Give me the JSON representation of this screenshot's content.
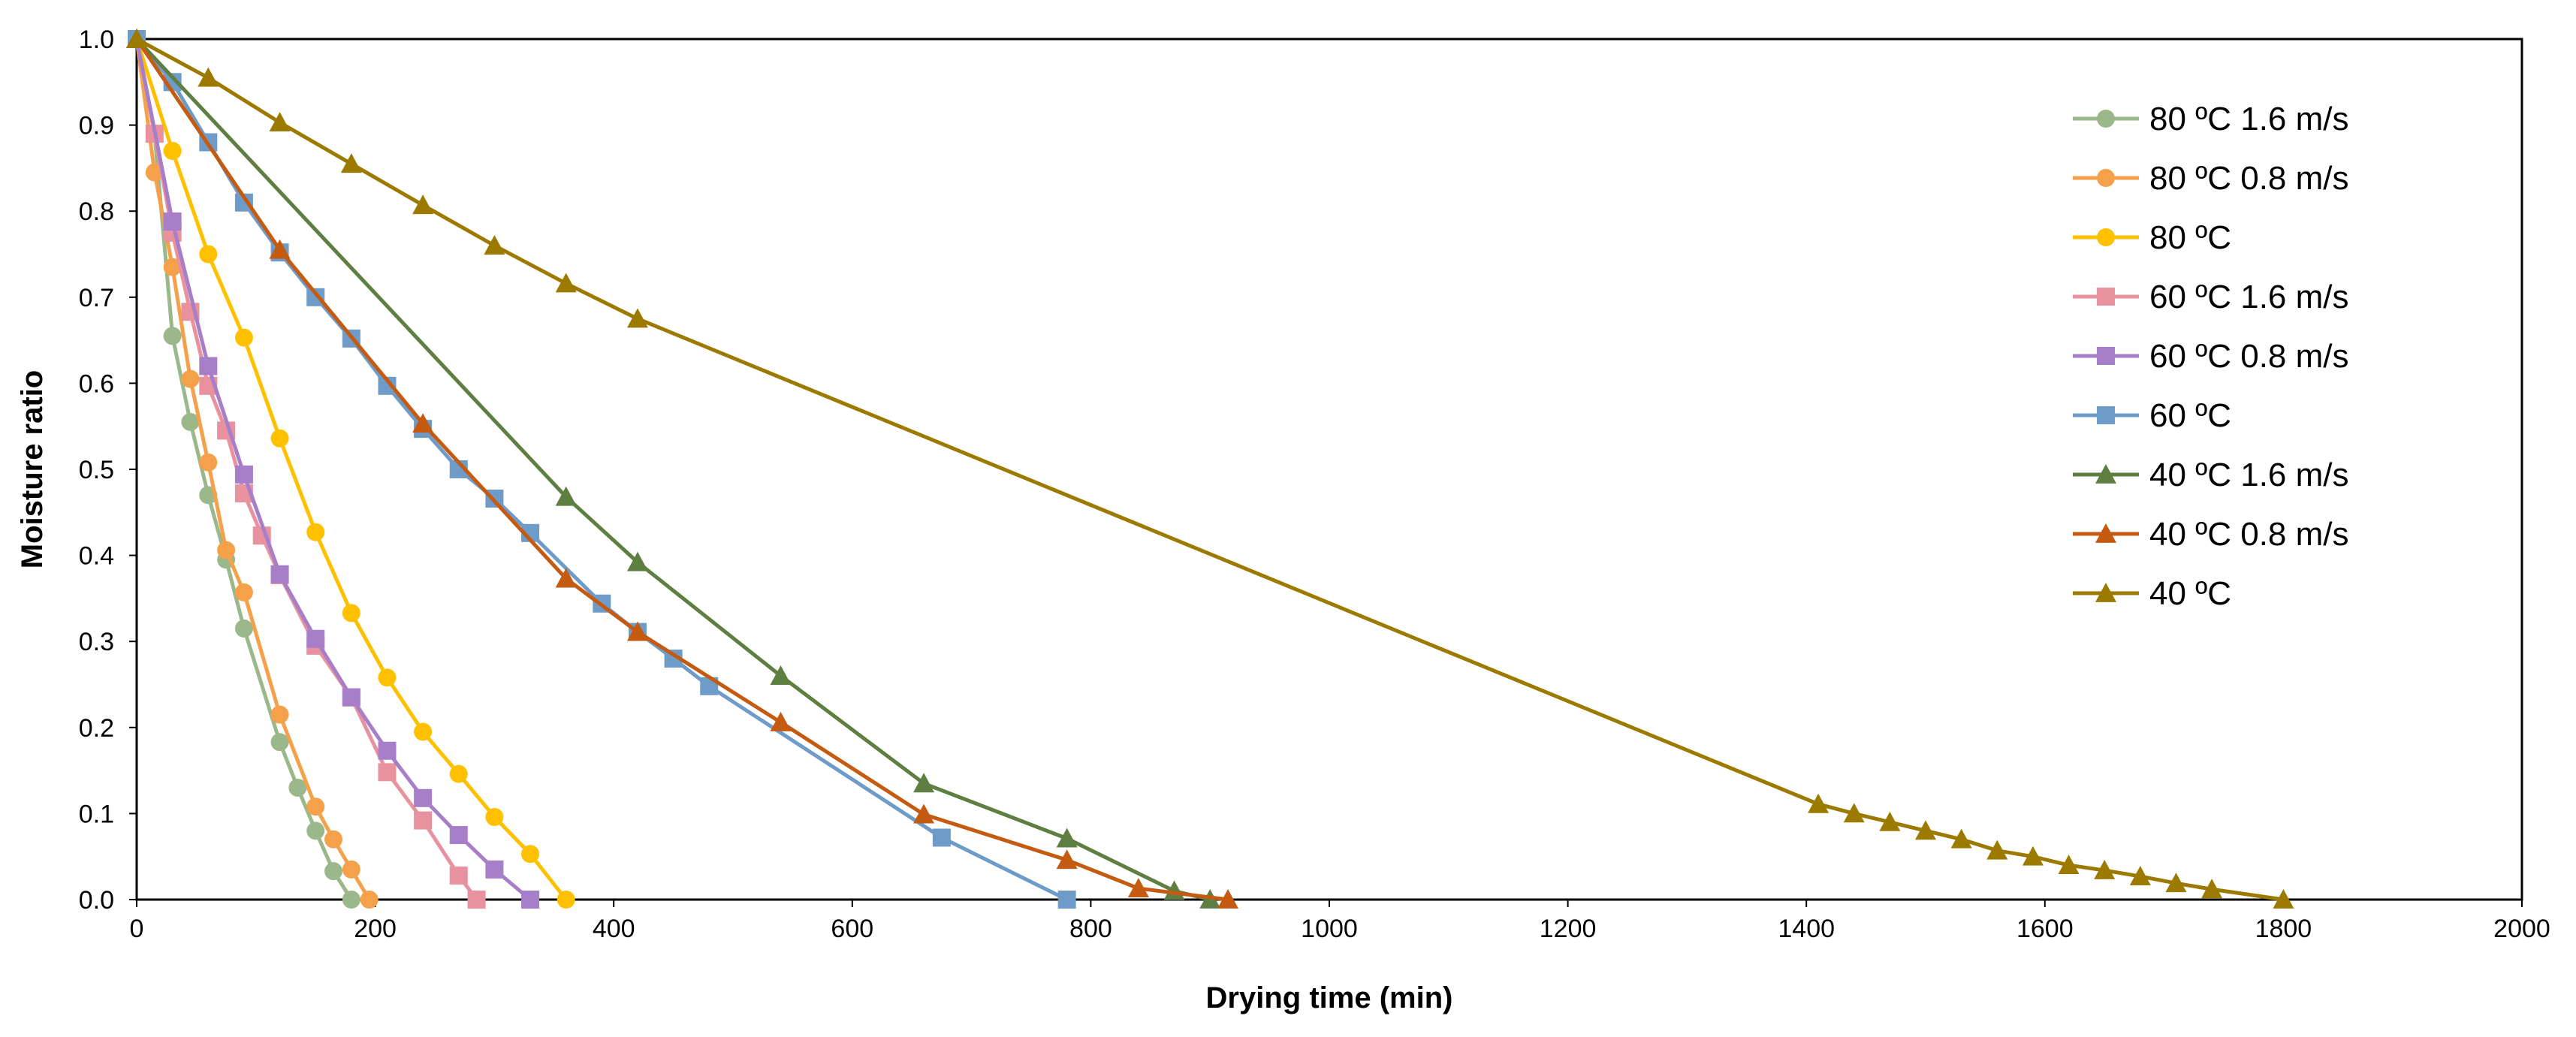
{
  "chart_data": {
    "type": "line",
    "title": "",
    "xlabel": "Drying time (min)",
    "ylabel": "Moisture ratio",
    "xlim": [
      0,
      2000
    ],
    "ylim": [
      0,
      1.0
    ],
    "xticks": [
      "0",
      "200",
      "400",
      "600",
      "800",
      "1000",
      "1200",
      "1400",
      "1600",
      "1800",
      "2000"
    ],
    "yticks": [
      "0.0",
      "0.1",
      "0.2",
      "0.3",
      "0.4",
      "0.5",
      "0.6",
      "0.7",
      "0.8",
      "0.9",
      "1.0"
    ],
    "legend_position": "top-right",
    "grid": false,
    "series": [
      {
        "name": "80 ºC 1.6 m/s",
        "color": "#9bb88a",
        "marker": "circle",
        "x": [
          0,
          15,
          30,
          45,
          60,
          75,
          90,
          120,
          135,
          150,
          165,
          180
        ],
        "y": [
          1.0,
          0.89,
          0.655,
          0.555,
          0.47,
          0.395,
          0.315,
          0.183,
          0.13,
          0.08,
          0.033,
          0.0
        ]
      },
      {
        "name": "80 ºC 0.8 m/s",
        "color": "#f5a04a",
        "marker": "circle",
        "x": [
          0,
          15,
          30,
          45,
          60,
          75,
          90,
          120,
          150,
          165,
          180,
          195
        ],
        "y": [
          1.0,
          0.845,
          0.735,
          0.605,
          0.508,
          0.406,
          0.357,
          0.215,
          0.108,
          0.07,
          0.035,
          0.0
        ]
      },
      {
        "name": "80 ºC",
        "color": "#ffc000",
        "marker": "circle",
        "x": [
          0,
          30,
          60,
          90,
          120,
          150,
          180,
          210,
          240,
          270,
          300,
          330,
          360
        ],
        "y": [
          1.0,
          0.87,
          0.75,
          0.653,
          0.536,
          0.427,
          0.333,
          0.258,
          0.195,
          0.146,
          0.096,
          0.053,
          0.0
        ]
      },
      {
        "name": "60 ºC 1.6 m/s",
        "color": "#e8919f",
        "marker": "square",
        "x": [
          0,
          15,
          30,
          45,
          60,
          75,
          90,
          105,
          120,
          150,
          180,
          210,
          240,
          270,
          285
        ],
        "y": [
          1.0,
          0.89,
          0.775,
          0.683,
          0.597,
          0.545,
          0.472,
          0.423,
          0.377,
          0.295,
          0.235,
          0.148,
          0.092,
          0.028,
          0.0
        ]
      },
      {
        "name": "60 ºC 0.8 m/s",
        "color": "#a67fc8",
        "marker": "square",
        "x": [
          0,
          30,
          60,
          90,
          120,
          150,
          180,
          210,
          240,
          270,
          300,
          330
        ],
        "y": [
          1.0,
          0.788,
          0.62,
          0.494,
          0.378,
          0.303,
          0.235,
          0.173,
          0.118,
          0.075,
          0.035,
          0.0
        ]
      },
      {
        "name": "60 ºC",
        "color": "#6e9bc8",
        "marker": "square",
        "x": [
          0,
          30,
          60,
          90,
          120,
          150,
          180,
          210,
          240,
          270,
          300,
          330,
          390,
          420,
          450,
          480,
          675,
          780
        ],
        "y": [
          1.0,
          0.95,
          0.88,
          0.81,
          0.752,
          0.7,
          0.652,
          0.597,
          0.547,
          0.5,
          0.466,
          0.426,
          0.344,
          0.311,
          0.28,
          0.248,
          0.072,
          0.0
        ]
      },
      {
        "name": "40 ºC 1.6 m/s",
        "color": "#5f7f42",
        "marker": "triangle",
        "x": [
          0,
          360,
          420,
          540,
          660,
          780,
          870,
          900
        ],
        "y": [
          1.0,
          0.468,
          0.392,
          0.26,
          0.135,
          0.071,
          0.01,
          0.0
        ]
      },
      {
        "name": "40 ºC 0.8 m/s",
        "color": "#c55a11",
        "marker": "triangle",
        "x": [
          0,
          120,
          240,
          360,
          420,
          540,
          660,
          780,
          840,
          915
        ],
        "y": [
          1.0,
          0.755,
          0.553,
          0.373,
          0.311,
          0.206,
          0.099,
          0.046,
          0.013,
          0.0
        ]
      },
      {
        "name": "40 ºC",
        "color": "#9c7a00",
        "marker": "triangle",
        "x": [
          0,
          60,
          120,
          180,
          240,
          300,
          360,
          420,
          1410,
          1440,
          1470,
          1500,
          1530,
          1560,
          1590,
          1620,
          1650,
          1680,
          1710,
          1740,
          1800
        ],
        "y": [
          1.0,
          0.955,
          0.903,
          0.855,
          0.807,
          0.76,
          0.716,
          0.675,
          0.111,
          0.1,
          0.09,
          0.08,
          0.07,
          0.057,
          0.05,
          0.04,
          0.034,
          0.027,
          0.019,
          0.012,
          0.0
        ]
      }
    ]
  }
}
